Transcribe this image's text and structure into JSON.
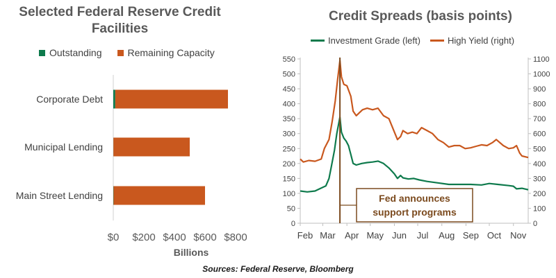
{
  "colors": {
    "outstanding": "#0E7A4C",
    "capacity": "#C9581E",
    "investment_grade": "#0E7A4C",
    "high_yield": "#C9581E",
    "annotation": "#7B4A1E",
    "text": "#595959"
  },
  "source": "Sources: Federal Reserve, Bloomberg",
  "chart_data": [
    {
      "type": "bar",
      "orientation": "horizontal",
      "stacked": true,
      "title": "Selected Federal Reserve Credit Facilities",
      "categories": [
        "Corporate Debt",
        "Municipal Lending",
        "Main Street Lending"
      ],
      "series": [
        {
          "name": "Outstanding",
          "values": [
            13,
            1,
            2
          ]
        },
        {
          "name": "Remaining Capacity",
          "values": [
            737,
            499,
            598
          ]
        }
      ],
      "xlabel": "Billions",
      "xlim": [
        0,
        800
      ],
      "xticks": [
        0,
        200,
        400,
        600,
        800
      ],
      "xtick_labels": [
        "$0",
        "$200",
        "$400",
        "$600",
        "$800"
      ],
      "legend_position": "top"
    },
    {
      "type": "line",
      "title": "Credit Spreads (basis points)",
      "dual_axis": true,
      "ylim_left": [
        0,
        550
      ],
      "yticks_left": [
        0,
        50,
        100,
        150,
        200,
        250,
        300,
        350,
        400,
        450,
        500,
        550
      ],
      "ylim_right": [
        0,
        1100
      ],
      "yticks_right": [
        0,
        100,
        200,
        300,
        400,
        500,
        600,
        700,
        800,
        900,
        1000,
        1100
      ],
      "xlim": [
        "2020-02-01",
        "2020-11-20"
      ],
      "month_labels": [
        "Feb",
        "Mar",
        "Apr",
        "May",
        "Jun",
        "Jul",
        "Aug",
        "Sep",
        "Oct",
        "Nov"
      ],
      "legend_position": "top",
      "series": [
        {
          "name": "Investment Grade (left)",
          "axis": "left",
          "points": [
            [
              "2020-02-01",
              108
            ],
            [
              "2020-02-10",
              105
            ],
            [
              "2020-02-20",
              108
            ],
            [
              "2020-02-28",
              118
            ],
            [
              "2020-03-05",
              125
            ],
            [
              "2020-03-09",
              150
            ],
            [
              "2020-03-12",
              190
            ],
            [
              "2020-03-16",
              245
            ],
            [
              "2020-03-19",
              300
            ],
            [
              "2020-03-23",
              355
            ],
            [
              "2020-03-25",
              305
            ],
            [
              "2020-03-28",
              285
            ],
            [
              "2020-03-31",
              275
            ],
            [
              "2020-04-03",
              260
            ],
            [
              "2020-04-06",
              230
            ],
            [
              "2020-04-09",
              200
            ],
            [
              "2020-04-13",
              195
            ],
            [
              "2020-04-20",
              200
            ],
            [
              "2020-04-27",
              203
            ],
            [
              "2020-05-04",
              205
            ],
            [
              "2020-05-11",
              208
            ],
            [
              "2020-05-18",
              200
            ],
            [
              "2020-05-25",
              185
            ],
            [
              "2020-06-01",
              165
            ],
            [
              "2020-06-05",
              150
            ],
            [
              "2020-06-09",
              160
            ],
            [
              "2020-06-12",
              152
            ],
            [
              "2020-06-19",
              148
            ],
            [
              "2020-06-26",
              150
            ],
            [
              "2020-07-03",
              145
            ],
            [
              "2020-07-13",
              140
            ],
            [
              "2020-07-27",
              135
            ],
            [
              "2020-08-10",
              130
            ],
            [
              "2020-08-24",
              130
            ],
            [
              "2020-09-07",
              130
            ],
            [
              "2020-09-21",
              128
            ],
            [
              "2020-10-01",
              133
            ],
            [
              "2020-10-12",
              130
            ],
            [
              "2020-10-26",
              126
            ],
            [
              "2020-11-01",
              124
            ],
            [
              "2020-11-05",
              115
            ],
            [
              "2020-11-12",
              117
            ],
            [
              "2020-11-20",
              112
            ]
          ]
        },
        {
          "name": "High Yield (right)",
          "axis": "right",
          "points": [
            [
              "2020-02-01",
              430
            ],
            [
              "2020-02-05",
              410
            ],
            [
              "2020-02-12",
              420
            ],
            [
              "2020-02-20",
              415
            ],
            [
              "2020-02-28",
              430
            ],
            [
              "2020-03-03",
              500
            ],
            [
              "2020-03-09",
              560
            ],
            [
              "2020-03-13",
              680
            ],
            [
              "2020-03-17",
              820
            ],
            [
              "2020-03-20",
              960
            ],
            [
              "2020-03-23",
              1090
            ],
            [
              "2020-03-25",
              980
            ],
            [
              "2020-03-28",
              930
            ],
            [
              "2020-04-01",
              920
            ],
            [
              "2020-04-06",
              850
            ],
            [
              "2020-04-09",
              750
            ],
            [
              "2020-04-13",
              720
            ],
            [
              "2020-04-17",
              740
            ],
            [
              "2020-04-21",
              760
            ],
            [
              "2020-04-27",
              770
            ],
            [
              "2020-05-04",
              760
            ],
            [
              "2020-05-11",
              770
            ],
            [
              "2020-05-18",
              720
            ],
            [
              "2020-05-25",
              700
            ],
            [
              "2020-06-01",
              610
            ],
            [
              "2020-06-05",
              560
            ],
            [
              "2020-06-09",
              580
            ],
            [
              "2020-06-12",
              620
            ],
            [
              "2020-06-18",
              600
            ],
            [
              "2020-06-24",
              610
            ],
            [
              "2020-06-30",
              600
            ],
            [
              "2020-07-06",
              640
            ],
            [
              "2020-07-13",
              620
            ],
            [
              "2020-07-20",
              600
            ],
            [
              "2020-07-27",
              560
            ],
            [
              "2020-08-03",
              540
            ],
            [
              "2020-08-10",
              510
            ],
            [
              "2020-08-17",
              520
            ],
            [
              "2020-08-24",
              520
            ],
            [
              "2020-08-31",
              500
            ],
            [
              "2020-09-07",
              505
            ],
            [
              "2020-09-14",
              515
            ],
            [
              "2020-09-21",
              525
            ],
            [
              "2020-09-28",
              520
            ],
            [
              "2020-10-05",
              540
            ],
            [
              "2020-10-10",
              560
            ],
            [
              "2020-10-19",
              520
            ],
            [
              "2020-10-26",
              500
            ],
            [
              "2020-11-01",
              505
            ],
            [
              "2020-11-05",
              520
            ],
            [
              "2020-11-09",
              470
            ],
            [
              "2020-11-12",
              450
            ],
            [
              "2020-11-20",
              440
            ]
          ]
        }
      ],
      "annotation": {
        "text_line1": "Fed announces",
        "text_line2": "support programs",
        "date": "2020-03-23"
      }
    }
  ]
}
